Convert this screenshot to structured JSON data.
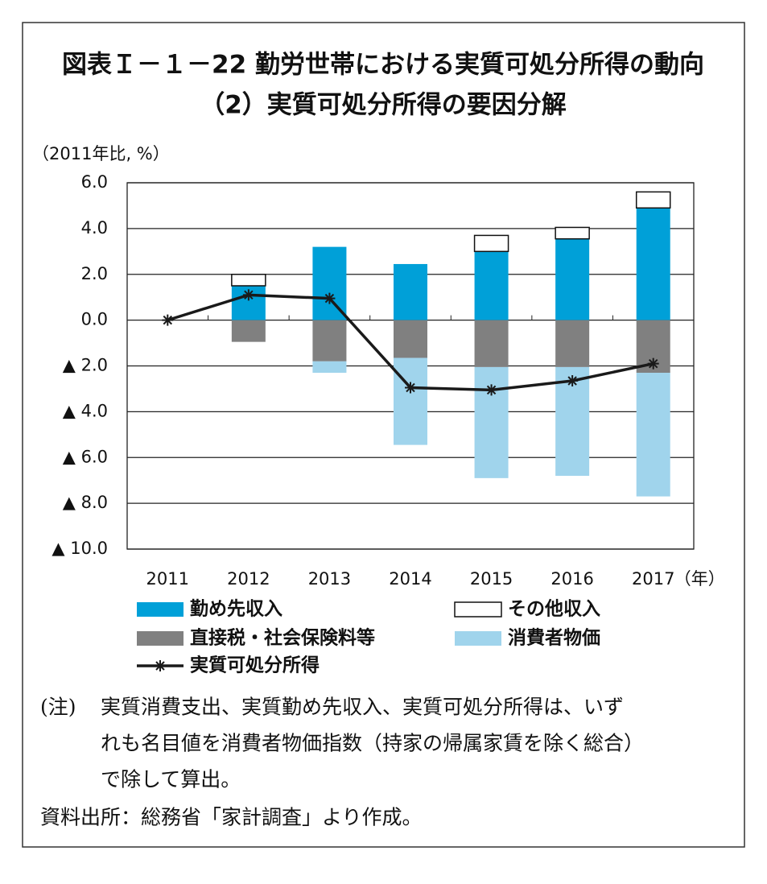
{
  "chart_data": {
    "type": "bar",
    "title": "図表Ｉ－１－22  勤労世帯における実質可処分所得の動向",
    "subtitle": "（2）実質可処分所得の要因分解",
    "y_label": "（2011年比, %）",
    "x_unit": "（年）",
    "categories": [
      "2011",
      "2012",
      "2013",
      "2014",
      "2015",
      "2016",
      "2017"
    ],
    "series": [
      {
        "name": "勤め先収入",
        "color": "#00a0d8",
        "values": [
          0,
          1.5,
          3.2,
          2.45,
          3.0,
          3.55,
          4.9
        ]
      },
      {
        "name": "その他収入",
        "color": "#ffffff",
        "values": [
          0,
          0.5,
          0,
          0,
          0.7,
          0.5,
          0.7
        ]
      },
      {
        "name": "直接税・社会保険料等",
        "color": "#808080",
        "values": [
          0,
          -0.95,
          -1.8,
          -1.65,
          -2.05,
          -2.05,
          -2.3
        ]
      },
      {
        "name": "消費者物価",
        "color": "#a0d4ec",
        "values": [
          0,
          0,
          -0.5,
          -3.8,
          -4.85,
          -4.75,
          -5.4
        ]
      },
      {
        "name": "実質可処分所得",
        "type": "line",
        "color": "#1a1a1a",
        "values": [
          0,
          1.1,
          0.95,
          -2.95,
          -3.05,
          -2.65,
          -1.9
        ]
      }
    ],
    "ylim": [
      -10,
      6
    ],
    "yticks": [
      {
        "value": 6,
        "label": "6.0"
      },
      {
        "value": 4,
        "label": "4.0"
      },
      {
        "value": 2,
        "label": "2.0"
      },
      {
        "value": 0,
        "label": "0.0"
      },
      {
        "value": -2,
        "label": "▲ 2.0"
      },
      {
        "value": -4,
        "label": "▲ 4.0"
      },
      {
        "value": -6,
        "label": "▲ 6.0"
      },
      {
        "value": -8,
        "label": "▲ 8.0"
      },
      {
        "value": -10,
        "label": "▲ 10.0"
      }
    ],
    "grid": true,
    "note_label": "(注)",
    "note_lines": [
      "実質消費支出、実質勤め先収入、実質可処分所得は、いず",
      "れも名目値を消費者物価指数（持家の帰属家賃を除く総合）",
      "で除して算出。"
    ],
    "source": "資料出所：総務省「家計調査」より作成。"
  }
}
